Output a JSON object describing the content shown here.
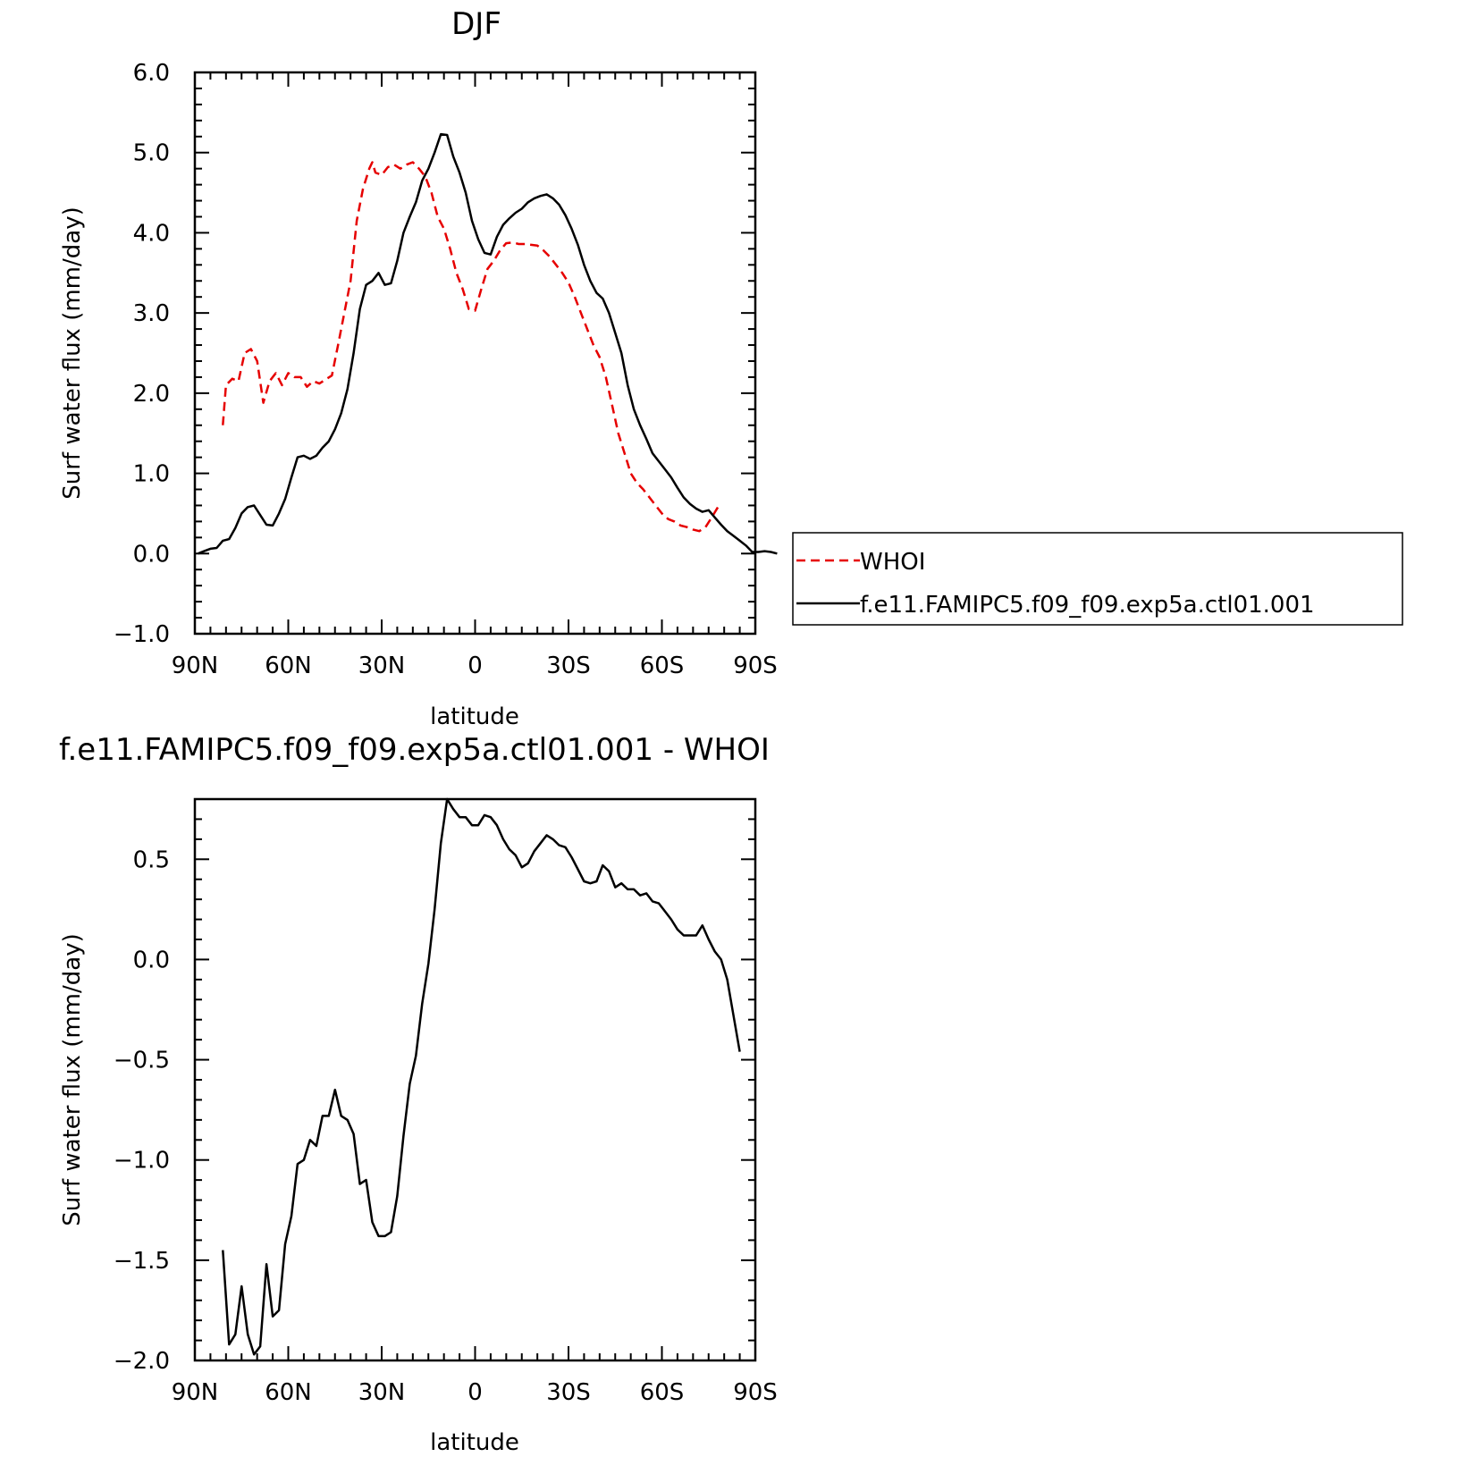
{
  "chart_data": [
    {
      "type": "line",
      "title": "DJF",
      "xlabel": "latitude",
      "ylabel": "Surf water flux (mm/day)",
      "xlim": [
        90,
        -90
      ],
      "ylim": [
        -1.0,
        6.0
      ],
      "x_ticks": [
        90,
        60,
        30,
        0,
        -30,
        -60,
        -90
      ],
      "x_tick_labels": [
        "90N",
        "60N",
        "30N",
        "0",
        "30S",
        "60S",
        "90S"
      ],
      "y_ticks": [
        -1.0,
        0.0,
        1.0,
        2.0,
        3.0,
        4.0,
        5.0,
        6.0
      ],
      "y_tick_labels": [
        "-1.0",
        "0.0",
        "1.0",
        "2.0",
        "3.0",
        "4.0",
        "5.0",
        "6.0"
      ],
      "grid": false,
      "legend": "outside right",
      "series": [
        {
          "name": "WHOI",
          "color": "#e60000",
          "style": "dashed",
          "points": [
            [
              81,
              1.6
            ],
            [
              80,
              2.1
            ],
            [
              78,
              2.18
            ],
            [
              76,
              2.15
            ],
            [
              74,
              2.5
            ],
            [
              72,
              2.55
            ],
            [
              70,
              2.4
            ],
            [
              68,
              1.88
            ],
            [
              66,
              2.15
            ],
            [
              64,
              2.25
            ],
            [
              62,
              2.1
            ],
            [
              60,
              2.25
            ],
            [
              58,
              2.2
            ],
            [
              56,
              2.2
            ],
            [
              54,
              2.08
            ],
            [
              52,
              2.15
            ],
            [
              50,
              2.12
            ],
            [
              48,
              2.17
            ],
            [
              46,
              2.22
            ],
            [
              44,
              2.6
            ],
            [
              42,
              3.0
            ],
            [
              40,
              3.4
            ],
            [
              38,
              4.15
            ],
            [
              36,
              4.55
            ],
            [
              34,
              4.8
            ],
            [
              33,
              4.88
            ],
            [
              32,
              4.75
            ],
            [
              30,
              4.72
            ],
            [
              28,
              4.82
            ],
            [
              26,
              4.85
            ],
            [
              24,
              4.8
            ],
            [
              22,
              4.85
            ],
            [
              20,
              4.88
            ],
            [
              18,
              4.8
            ],
            [
              16,
              4.7
            ],
            [
              14,
              4.5
            ],
            [
              12,
              4.2
            ],
            [
              10,
              4.05
            ],
            [
              8,
              3.8
            ],
            [
              6,
              3.5
            ],
            [
              4,
              3.3
            ],
            [
              2,
              3.05
            ],
            [
              0,
              3.03
            ],
            [
              -2,
              3.3
            ],
            [
              -4,
              3.55
            ],
            [
              -6,
              3.65
            ],
            [
              -8,
              3.78
            ],
            [
              -10,
              3.87
            ],
            [
              -12,
              3.88
            ],
            [
              -14,
              3.86
            ],
            [
              -16,
              3.86
            ],
            [
              -18,
              3.85
            ],
            [
              -20,
              3.84
            ],
            [
              -22,
              3.78
            ],
            [
              -24,
              3.7
            ],
            [
              -26,
              3.6
            ],
            [
              -28,
              3.5
            ],
            [
              -30,
              3.38
            ],
            [
              -32,
              3.2
            ],
            [
              -34,
              3.0
            ],
            [
              -36,
              2.8
            ],
            [
              -38,
              2.6
            ],
            [
              -40,
              2.45
            ],
            [
              -42,
              2.2
            ],
            [
              -44,
              1.85
            ],
            [
              -46,
              1.5
            ],
            [
              -48,
              1.25
            ],
            [
              -50,
              1.0
            ],
            [
              -52,
              0.88
            ],
            [
              -54,
              0.8
            ],
            [
              -56,
              0.7
            ],
            [
              -58,
              0.6
            ],
            [
              -60,
              0.5
            ],
            [
              -62,
              0.43
            ],
            [
              -64,
              0.4
            ],
            [
              -66,
              0.35
            ],
            [
              -68,
              0.33
            ],
            [
              -70,
              0.3
            ],
            [
              -72,
              0.28
            ],
            [
              -74,
              0.33
            ],
            [
              -76,
              0.45
            ],
            [
              -78,
              0.58
            ]
          ]
        },
        {
          "name": "f.e11.FAMIPC5.f09_f09.exp5a.ctl01.001",
          "color": "#000000",
          "style": "solid",
          "points": [
            [
              89,
              0.0
            ],
            [
              87,
              0.03
            ],
            [
              85,
              0.06
            ],
            [
              83,
              0.07
            ],
            [
              81,
              0.16
            ],
            [
              79,
              0.18
            ],
            [
              77,
              0.32
            ],
            [
              75,
              0.5
            ],
            [
              73,
              0.58
            ],
            [
              71,
              0.6
            ],
            [
              69,
              0.48
            ],
            [
              67,
              0.36
            ],
            [
              65,
              0.35
            ],
            [
              63,
              0.5
            ],
            [
              61,
              0.68
            ],
            [
              59,
              0.95
            ],
            [
              57,
              1.2
            ],
            [
              55,
              1.22
            ],
            [
              53,
              1.18
            ],
            [
              51,
              1.22
            ],
            [
              49,
              1.32
            ],
            [
              47,
              1.4
            ],
            [
              45,
              1.55
            ],
            [
              43,
              1.75
            ],
            [
              41,
              2.05
            ],
            [
              39,
              2.5
            ],
            [
              37,
              3.05
            ],
            [
              35,
              3.35
            ],
            [
              33,
              3.4
            ],
            [
              31,
              3.5
            ],
            [
              29,
              3.35
            ],
            [
              27,
              3.37
            ],
            [
              25,
              3.65
            ],
            [
              23,
              4.0
            ],
            [
              21,
              4.2
            ],
            [
              19,
              4.38
            ],
            [
              17,
              4.65
            ],
            [
              15,
              4.8
            ],
            [
              13,
              5.0
            ],
            [
              11,
              5.23
            ],
            [
              9,
              5.22
            ],
            [
              7,
              4.95
            ],
            [
              5,
              4.75
            ],
            [
              3,
              4.5
            ],
            [
              1,
              4.15
            ],
            [
              -1,
              3.92
            ],
            [
              -3,
              3.75
            ],
            [
              -5,
              3.73
            ],
            [
              -7,
              3.95
            ],
            [
              -9,
              4.1
            ],
            [
              -11,
              4.18
            ],
            [
              -13,
              4.25
            ],
            [
              -15,
              4.3
            ],
            [
              -17,
              4.38
            ],
            [
              -19,
              4.43
            ],
            [
              -21,
              4.46
            ],
            [
              -23,
              4.48
            ],
            [
              -25,
              4.43
            ],
            [
              -27,
              4.35
            ],
            [
              -29,
              4.22
            ],
            [
              -31,
              4.05
            ],
            [
              -33,
              3.85
            ],
            [
              -35,
              3.6
            ],
            [
              -37,
              3.4
            ],
            [
              -39,
              3.25
            ],
            [
              -41,
              3.18
            ],
            [
              -43,
              3.0
            ],
            [
              -45,
              2.75
            ],
            [
              -47,
              2.5
            ],
            [
              -49,
              2.1
            ],
            [
              -51,
              1.8
            ],
            [
              -53,
              1.6
            ],
            [
              -55,
              1.43
            ],
            [
              -57,
              1.25
            ],
            [
              -59,
              1.15
            ],
            [
              -61,
              1.05
            ],
            [
              -63,
              0.95
            ],
            [
              -65,
              0.82
            ],
            [
              -67,
              0.7
            ],
            [
              -69,
              0.62
            ],
            [
              -71,
              0.56
            ],
            [
              -73,
              0.52
            ],
            [
              -75,
              0.54
            ],
            [
              -77,
              0.45
            ],
            [
              -79,
              0.36
            ],
            [
              -81,
              0.28
            ],
            [
              -83,
              0.22
            ],
            [
              -85,
              0.16
            ],
            [
              -87,
              0.1
            ],
            [
              -89,
              0.02
            ],
            [
              -91,
              0.02
            ],
            [
              -93,
              0.03
            ],
            [
              -95,
              0.02
            ],
            [
              -97,
              0.0
            ]
          ]
        }
      ]
    },
    {
      "type": "line",
      "title": "f.e11.FAMIPC5.f09_f09.exp5a.ctl01.001 - WHOI",
      "xlabel": "latitude",
      "ylabel": "Surf water flux (mm/day)",
      "xlim": [
        90,
        -90
      ],
      "ylim": [
        -2.0,
        0.8
      ],
      "x_ticks": [
        90,
        60,
        30,
        0,
        -30,
        -60,
        -90
      ],
      "x_tick_labels": [
        "90N",
        "60N",
        "30N",
        "0",
        "30S",
        "60S",
        "90S"
      ],
      "y_ticks": [
        -2.0,
        -1.5,
        -1.0,
        -0.5,
        0.0,
        0.5
      ],
      "y_tick_labels": [
        "-2.0",
        "-1.5",
        "-1.0",
        "-0.5",
        "0.0",
        "0.5"
      ],
      "grid": false,
      "series": [
        {
          "color": "#000000",
          "style": "solid",
          "points": [
            [
              81,
              -1.45
            ],
            [
              79,
              -1.92
            ],
            [
              77,
              -1.87
            ],
            [
              75,
              -1.63
            ],
            [
              73,
              -1.87
            ],
            [
              71,
              -1.97
            ],
            [
              69,
              -1.93
            ],
            [
              67,
              -1.52
            ],
            [
              65,
              -1.78
            ],
            [
              63,
              -1.75
            ],
            [
              61,
              -1.42
            ],
            [
              59,
              -1.28
            ],
            [
              57,
              -1.02
            ],
            [
              55,
              -1.0
            ],
            [
              53,
              -0.9
            ],
            [
              51,
              -0.93
            ],
            [
              49,
              -0.78
            ],
            [
              47,
              -0.78
            ],
            [
              45,
              -0.65
            ],
            [
              43,
              -0.78
            ],
            [
              41,
              -0.8
            ],
            [
              39,
              -0.87
            ],
            [
              37,
              -1.12
            ],
            [
              35,
              -1.1
            ],
            [
              33,
              -1.31
            ],
            [
              31,
              -1.38
            ],
            [
              29,
              -1.38
            ],
            [
              27,
              -1.36
            ],
            [
              25,
              -1.18
            ],
            [
              23,
              -0.88
            ],
            [
              21,
              -0.62
            ],
            [
              19,
              -0.48
            ],
            [
              17,
              -0.22
            ],
            [
              15,
              -0.02
            ],
            [
              13,
              0.25
            ],
            [
              11,
              0.58
            ],
            [
              9,
              0.8
            ],
            [
              7,
              0.75
            ],
            [
              5,
              0.71
            ],
            [
              3,
              0.71
            ],
            [
              1,
              0.67
            ],
            [
              -1,
              0.67
            ],
            [
              -3,
              0.72
            ],
            [
              -5,
              0.71
            ],
            [
              -7,
              0.67
            ],
            [
              -9,
              0.6
            ],
            [
              -11,
              0.55
            ],
            [
              -13,
              0.52
            ],
            [
              -15,
              0.46
            ],
            [
              -17,
              0.48
            ],
            [
              -19,
              0.54
            ],
            [
              -21,
              0.58
            ],
            [
              -23,
              0.62
            ],
            [
              -25,
              0.6
            ],
            [
              -27,
              0.57
            ],
            [
              -29,
              0.56
            ],
            [
              -31,
              0.51
            ],
            [
              -33,
              0.45
            ],
            [
              -35,
              0.39
            ],
            [
              -37,
              0.38
            ],
            [
              -39,
              0.39
            ],
            [
              -41,
              0.47
            ],
            [
              -43,
              0.44
            ],
            [
              -45,
              0.36
            ],
            [
              -47,
              0.38
            ],
            [
              -49,
              0.35
            ],
            [
              -51,
              0.35
            ],
            [
              -53,
              0.32
            ],
            [
              -55,
              0.33
            ],
            [
              -57,
              0.29
            ],
            [
              -59,
              0.28
            ],
            [
              -61,
              0.24
            ],
            [
              -63,
              0.2
            ],
            [
              -65,
              0.15
            ],
            [
              -67,
              0.12
            ],
            [
              -69,
              0.12
            ],
            [
              -71,
              0.12
            ],
            [
              -73,
              0.17
            ],
            [
              -75,
              0.1
            ],
            [
              -77,
              0.04
            ],
            [
              -79,
              0.0
            ],
            [
              -81,
              -0.1
            ],
            [
              -83,
              -0.28
            ],
            [
              -85,
              -0.46
            ]
          ]
        }
      ]
    }
  ]
}
